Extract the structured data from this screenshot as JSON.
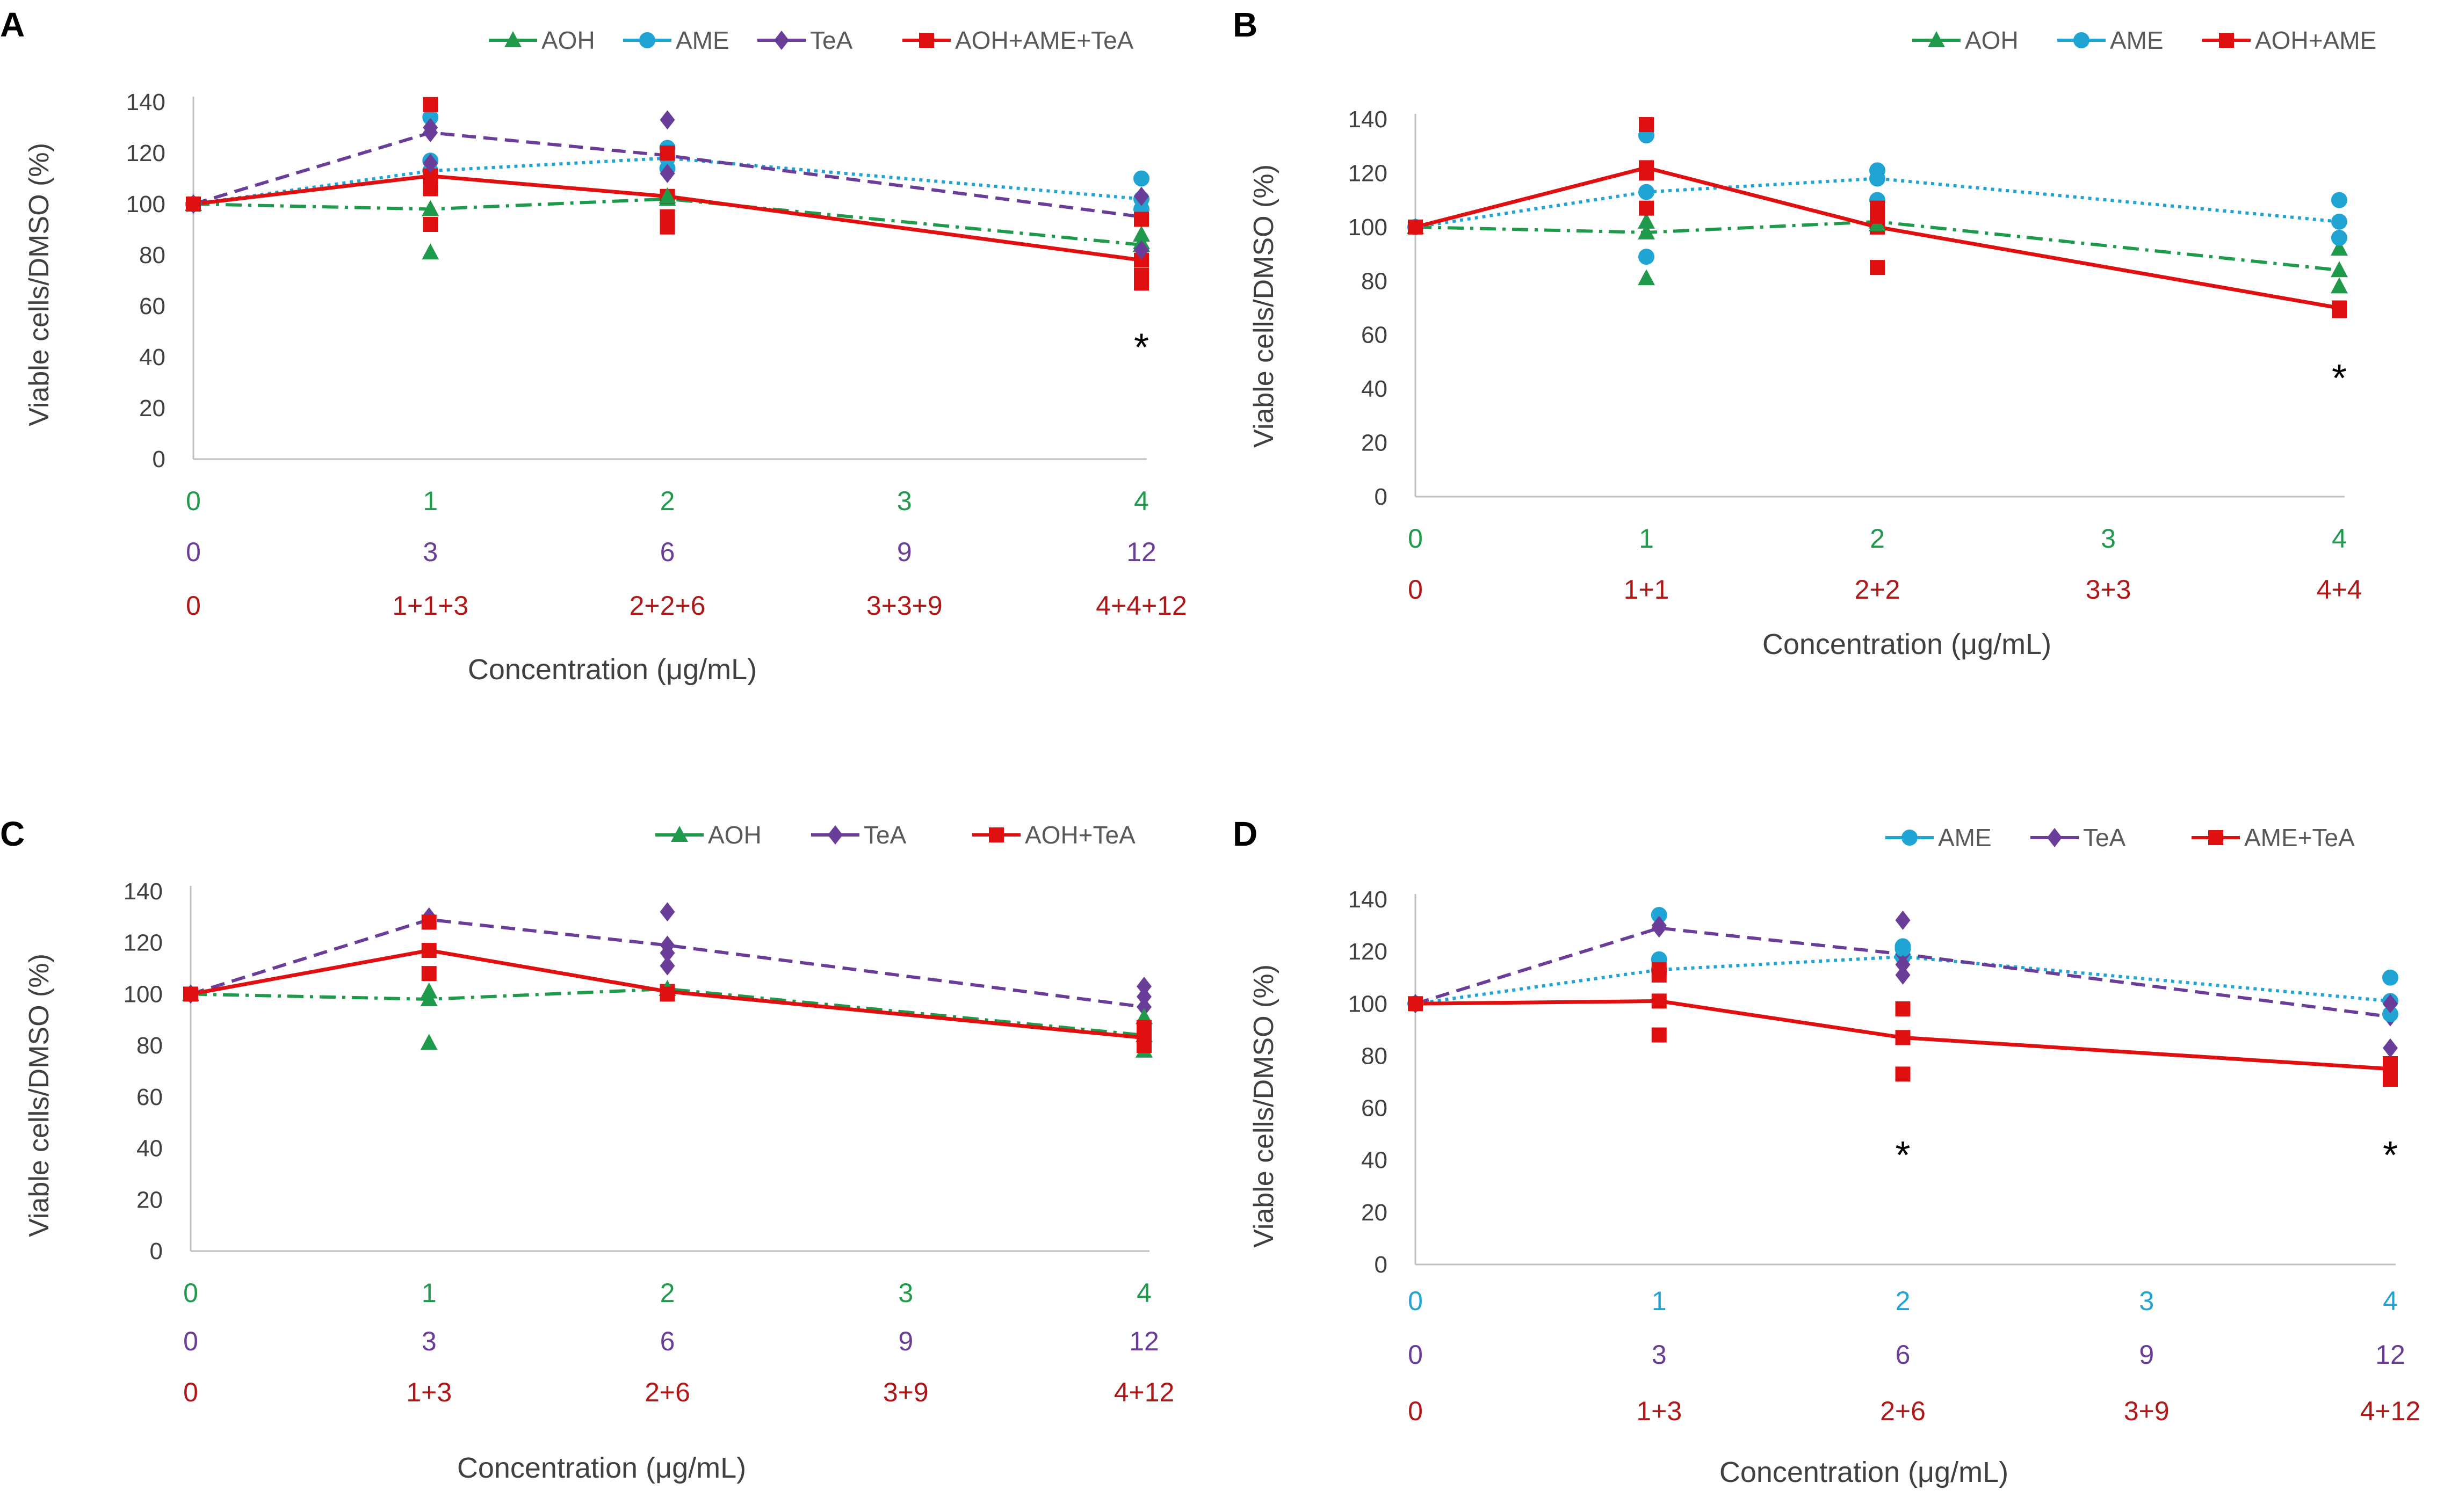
{
  "colors": {
    "AOH": "#1f9a4a",
    "AME": "#1fa4d4",
    "TeA": "#6a3d99",
    "MIX": "#e01010",
    "row_green": "#1f9a4a",
    "row_blue": "#1fa4d4",
    "row_purple": "#6a3d99",
    "row_red": "#b01818"
  },
  "chart_data": [
    {
      "type": "line",
      "panel": "A",
      "ylabel": "Viable cells/DMSO (%)",
      "xlabel": "Concentration (μg/mL)",
      "ylim": [
        0,
        140
      ],
      "yticks": [
        "0",
        "20",
        "40",
        "60",
        "80",
        "100",
        "120",
        "140"
      ],
      "x": [
        0,
        1,
        2,
        3,
        4
      ],
      "x_rows": [
        {
          "color": "row_green",
          "labels": [
            "0",
            "1",
            "2",
            "3",
            "4"
          ]
        },
        {
          "color": "row_purple",
          "labels": [
            "0",
            "3",
            "6",
            "9",
            "12"
          ]
        },
        {
          "color": "row_red",
          "labels": [
            "0",
            "1+1+3",
            "2+2+6",
            "3+3+9",
            "4+4+12"
          ]
        }
      ],
      "series": [
        {
          "name": "AOH",
          "key": "AOH",
          "marker": "triangle",
          "dash": "dashdot",
          "x": [
            0,
            1,
            2,
            4
          ],
          "values": [
            100,
            98,
            102,
            84
          ],
          "points": [
            [
              1,
              81
            ],
            [
              1,
              98
            ],
            [
              2,
              103
            ],
            [
              4,
              85
            ],
            [
              4,
              88
            ]
          ]
        },
        {
          "name": "AME",
          "key": "AME",
          "marker": "circle",
          "dash": "dotted",
          "x": [
            0,
            1,
            2,
            4
          ],
          "values": [
            100,
            113,
            118,
            102
          ],
          "points": [
            [
              1,
              134
            ],
            [
              1,
              117
            ],
            [
              2,
              122
            ],
            [
              2,
              114
            ],
            [
              4,
              110
            ],
            [
              4,
              98
            ]
          ]
        },
        {
          "name": "TeA",
          "key": "TeA",
          "marker": "diamond",
          "dash": "dashed",
          "x": [
            0,
            1,
            2,
            4
          ],
          "values": [
            100,
            128,
            119,
            95
          ],
          "points": [
            [
              1,
              130
            ],
            [
              1,
              116
            ],
            [
              2,
              133
            ],
            [
              2,
              112
            ],
            [
              4,
              103
            ],
            [
              4,
              82
            ]
          ]
        },
        {
          "name": "AOH+AME+TeA",
          "key": "MIX",
          "marker": "square",
          "dash": "solid",
          "x": [
            0,
            1,
            2,
            4
          ],
          "values": [
            100,
            111,
            103,
            78
          ],
          "points": [
            [
              1,
              139
            ],
            [
              1,
              106
            ],
            [
              1,
              92
            ],
            [
              2,
              120
            ],
            [
              2,
              95
            ],
            [
              2,
              91
            ],
            [
              4,
              94
            ],
            [
              4,
              72
            ],
            [
              4,
              69
            ]
          ]
        }
      ],
      "annotations": [
        {
          "text": "*",
          "x": 4,
          "y": 45
        }
      ]
    },
    {
      "type": "line",
      "panel": "B",
      "ylabel": "Viable cells/DMSO (%)",
      "xlabel": "Concentration (μg/mL)",
      "ylim": [
        0,
        140
      ],
      "yticks": [
        "0",
        "20",
        "40",
        "60",
        "80",
        "100",
        "120",
        "140"
      ],
      "x": [
        0,
        1,
        2,
        3,
        4
      ],
      "x_rows": [
        {
          "color": "row_green",
          "labels": [
            "0",
            "1",
            "2",
            "3",
            "4"
          ]
        },
        {
          "color": "row_red",
          "labels": [
            "0",
            "1+1",
            "2+2",
            "3+3",
            "4+4"
          ]
        }
      ],
      "series": [
        {
          "name": "AOH",
          "key": "AOH",
          "marker": "triangle",
          "dash": "dashdot",
          "x": [
            0,
            1,
            2,
            4
          ],
          "values": [
            100,
            98,
            102,
            84
          ],
          "points": [
            [
              1,
              81
            ],
            [
              1,
              102
            ],
            [
              2,
              101
            ],
            [
              4,
              92
            ],
            [
              4,
              78
            ]
          ]
        },
        {
          "name": "AME",
          "key": "AME",
          "marker": "circle",
          "dash": "dotted",
          "x": [
            0,
            1,
            2,
            4
          ],
          "values": [
            100,
            113,
            118,
            102
          ],
          "points": [
            [
              1,
              134
            ],
            [
              1,
              89
            ],
            [
              2,
              121
            ],
            [
              2,
              110
            ],
            [
              4,
              110
            ],
            [
              4,
              96
            ]
          ]
        },
        {
          "name": "AOH+AME",
          "key": "MIX",
          "marker": "square",
          "dash": "solid",
          "x": [
            0,
            1,
            2,
            4
          ],
          "values": [
            100,
            122,
            100,
            70
          ],
          "points": [
            [
              1,
              138
            ],
            [
              1,
              120
            ],
            [
              1,
              107
            ],
            [
              2,
              107
            ],
            [
              2,
              104
            ],
            [
              2,
              85
            ],
            [
              4,
              70
            ],
            [
              4,
              69
            ]
          ]
        }
      ],
      "annotations": [
        {
          "text": "*",
          "x": 4,
          "y": 45
        }
      ]
    },
    {
      "type": "line",
      "panel": "C",
      "ylabel": "Viable cells/DMSO (%)",
      "xlabel": "Concentration (μg/mL)",
      "ylim": [
        0,
        140
      ],
      "yticks": [
        "0",
        "20",
        "40",
        "60",
        "80",
        "100",
        "120",
        "140"
      ],
      "x": [
        0,
        1,
        2,
        3,
        4
      ],
      "x_rows": [
        {
          "color": "row_green",
          "labels": [
            "0",
            "1",
            "2",
            "3",
            "4"
          ]
        },
        {
          "color": "row_purple",
          "labels": [
            "0",
            "3",
            "6",
            "9",
            "12"
          ]
        },
        {
          "color": "row_red",
          "labels": [
            "0",
            "1+3",
            "2+6",
            "3+9",
            "4+12"
          ]
        }
      ],
      "series": [
        {
          "name": "AOH",
          "key": "AOH",
          "marker": "triangle",
          "dash": "dashdot",
          "x": [
            0,
            1,
            2,
            4
          ],
          "values": [
            100,
            98,
            102,
            84
          ],
          "points": [
            [
              1,
              81
            ],
            [
              1,
              101
            ],
            [
              2,
              102
            ],
            [
              4,
              91
            ],
            [
              4,
              78
            ]
          ]
        },
        {
          "name": "TeA",
          "key": "TeA",
          "marker": "diamond",
          "dash": "dashed",
          "x": [
            0,
            1,
            2,
            4
          ],
          "values": [
            100,
            129,
            119,
            95
          ],
          "points": [
            [
              1,
              130
            ],
            [
              2,
              132
            ],
            [
              2,
              116
            ],
            [
              2,
              111
            ],
            [
              4,
              103
            ],
            [
              4,
              99
            ]
          ]
        },
        {
          "name": "AOH+TeA",
          "key": "MIX",
          "marker": "square",
          "dash": "solid",
          "x": [
            0,
            1,
            2,
            4
          ],
          "values": [
            100,
            117,
            101,
            83
          ],
          "points": [
            [
              1,
              128
            ],
            [
              1,
              108
            ],
            [
              2,
              100
            ],
            [
              4,
              87
            ],
            [
              4,
              85
            ],
            [
              4,
              80
            ]
          ]
        }
      ],
      "annotations": []
    },
    {
      "type": "line",
      "panel": "D",
      "ylabel": "Viable cells/DMSO (%)",
      "xlabel": "Concentration (μg/mL)",
      "ylim": [
        0,
        140
      ],
      "yticks": [
        "0",
        "20",
        "40",
        "60",
        "80",
        "100",
        "120",
        "140"
      ],
      "x": [
        0,
        1,
        2,
        3,
        4
      ],
      "x_rows": [
        {
          "color": "row_blue",
          "labels": [
            "0",
            "1",
            "2",
            "3",
            "4"
          ]
        },
        {
          "color": "row_purple",
          "labels": [
            "0",
            "3",
            "6",
            "9",
            "12"
          ]
        },
        {
          "color": "row_red",
          "labels": [
            "0",
            "1+3",
            "2+6",
            "3+9",
            "4+12"
          ]
        }
      ],
      "series": [
        {
          "name": "AME",
          "key": "AME",
          "marker": "circle",
          "dash": "dotted",
          "x": [
            0,
            1,
            2,
            4
          ],
          "values": [
            100,
            113,
            118,
            101
          ],
          "points": [
            [
              1,
              134
            ],
            [
              1,
              117
            ],
            [
              2,
              122
            ],
            [
              2,
              121
            ],
            [
              4,
              110
            ],
            [
              4,
              96
            ]
          ]
        },
        {
          "name": "TeA",
          "key": "TeA",
          "marker": "diamond",
          "dash": "dashed",
          "x": [
            0,
            1,
            2,
            4
          ],
          "values": [
            100,
            129,
            119,
            95
          ],
          "points": [
            [
              1,
              130
            ],
            [
              2,
              132
            ],
            [
              2,
              115
            ],
            [
              2,
              111
            ],
            [
              4,
              100
            ],
            [
              4,
              83
            ]
          ]
        },
        {
          "name": "AME+TeA",
          "key": "MIX",
          "marker": "square",
          "dash": "solid",
          "x": [
            0,
            1,
            2,
            4
          ],
          "values": [
            100,
            101,
            87,
            75
          ],
          "points": [
            [
              1,
              113
            ],
            [
              1,
              111
            ],
            [
              1,
              88
            ],
            [
              2,
              98
            ],
            [
              2,
              87
            ],
            [
              2,
              73
            ],
            [
              4,
              77
            ],
            [
              4,
              74
            ],
            [
              4,
              71
            ]
          ]
        }
      ],
      "annotations": [
        {
          "text": "*",
          "x": 2,
          "y": 43
        },
        {
          "text": "*",
          "x": 4,
          "y": 43
        }
      ]
    }
  ]
}
